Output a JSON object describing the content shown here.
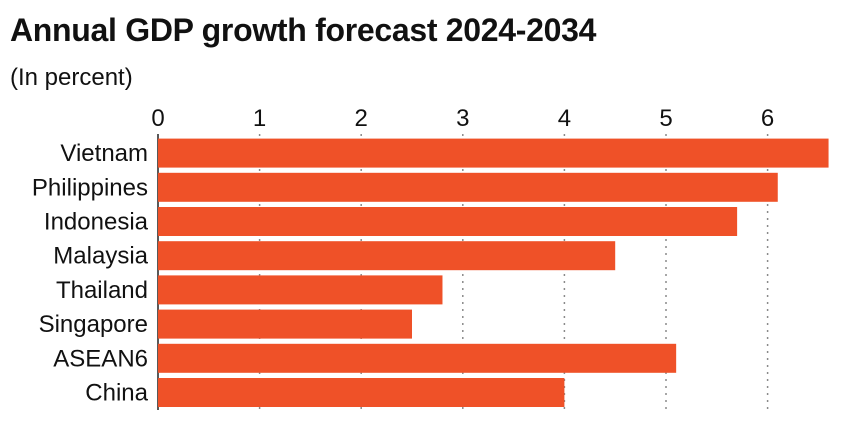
{
  "header": {
    "title": "Annual GDP growth forecast 2024-2034",
    "subtitle": "(In percent)"
  },
  "colors": {
    "bar": "#ef5128",
    "grid": "#8a8a8a",
    "text": "#111111"
  },
  "chart_data": {
    "type": "bar",
    "orientation": "horizontal",
    "title": "Annual GDP growth forecast 2024-2034",
    "subtitle": "(In percent)",
    "xlabel": "",
    "ylabel": "",
    "xlim": [
      0,
      6.6
    ],
    "xticks": [
      0,
      1,
      2,
      3,
      4,
      5,
      6
    ],
    "grid": true,
    "legend": "none",
    "categories": [
      "Vietnam",
      "Philippines",
      "Indonesia",
      "Malaysia",
      "Thailand",
      "Singapore",
      "ASEAN6",
      "China"
    ],
    "values": [
      6.6,
      6.1,
      5.7,
      4.5,
      2.8,
      2.5,
      5.1,
      4.0
    ]
  }
}
